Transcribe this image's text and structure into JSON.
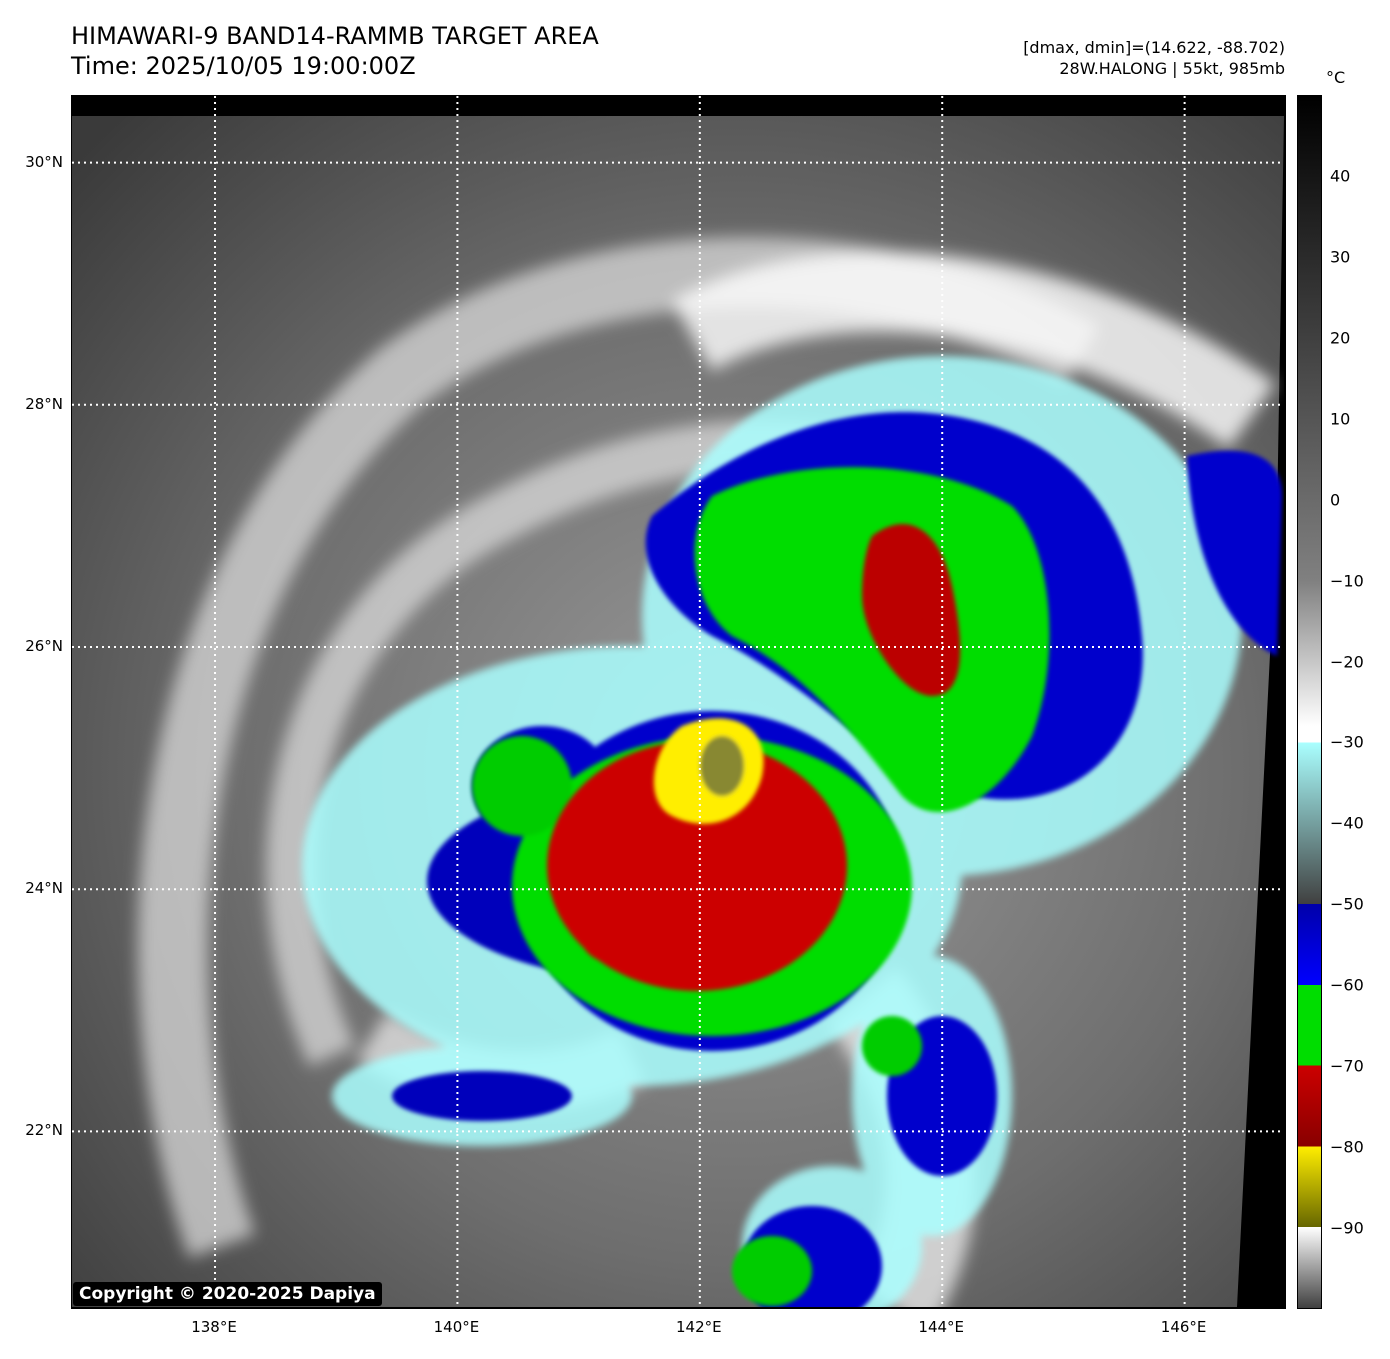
{
  "header": {
    "title_line1": "HIMAWARI-9 BAND14-RAMMB TARGET AREA",
    "title_line2": "Time: 2025/10/05 19:00:00Z",
    "info_line1": "[dmax, dmin]=(14.622, -88.702)",
    "info_line2": "28W.HALONG | 55kt, 985mb"
  },
  "map": {
    "lat_labels": [
      "30°N",
      "28°N",
      "26°N",
      "24°N",
      "22°N"
    ],
    "lon_labels": [
      "138°E",
      "140°E",
      "142°E",
      "144°E",
      "146°E"
    ],
    "lat_values": [
      30,
      28,
      26,
      24,
      22
    ],
    "lon_values": [
      138,
      140,
      142,
      144,
      146
    ],
    "lat_range": [
      20.55,
      30.55
    ],
    "lon_range": [
      136.82,
      146.82
    ],
    "storm_center": {
      "lat": 25.0,
      "lon": 142.1
    }
  },
  "colorbar": {
    "unit": "°C",
    "labels": [
      "40",
      "30",
      "20",
      "10",
      "0",
      "−10",
      "−20",
      "−30",
      "−40",
      "−50",
      "−60",
      "−70",
      "−80",
      "−90"
    ],
    "values": [
      40,
      30,
      20,
      10,
      0,
      -10,
      -20,
      -30,
      -40,
      -50,
      -60,
      -70,
      -80,
      -90
    ],
    "range": [
      -100,
      50
    ],
    "colors": {
      "warm_black": "#000000",
      "gray_mid": "#808080",
      "white": "#ffffff",
      "cyan": "#aaffff",
      "dark_gray": "#404040",
      "blue": "#0000aa",
      "blue_bright": "#0000ff",
      "green": "#00dd00",
      "red": "#cc0000",
      "dark_red": "#880000",
      "yellow": "#ffee00",
      "olive": "#666600"
    }
  },
  "copyright": "Copyright © 2020-2025 Dapiya"
}
